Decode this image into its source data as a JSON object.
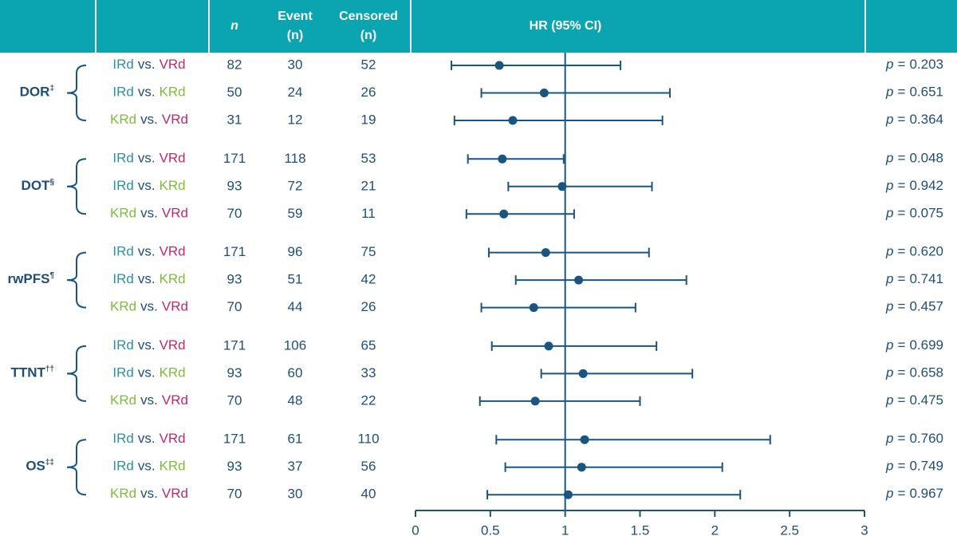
{
  "chart_data": {
    "type": "forest",
    "headers": {
      "n": "n",
      "event": [
        "Event",
        "(n)"
      ],
      "censored": [
        "Censored",
        "(n)"
      ],
      "hr": "HR (95% CI)"
    },
    "separator": "vs.",
    "p_symbol": "p",
    "p_equals": "=",
    "arm_colors": {
      "IRd": "#2b8fae",
      "VRd": "#c1286f",
      "KRd": "#7cbf3d"
    },
    "color": "#1a5480",
    "header_color": "#0ba5b1",
    "xlim": [
      0,
      3
    ],
    "xticks": [
      0,
      0.5,
      1,
      1.5,
      2,
      2.5,
      3
    ],
    "reference": 1,
    "groups": [
      {
        "label": "DOR",
        "sup": "‡",
        "rows": [
          {
            "arms": [
              "IRd",
              "VRd"
            ],
            "n": 82,
            "event": 30,
            "censored": 52,
            "hr": 0.56,
            "ci_low": 0.24,
            "ci_high": 1.37,
            "p": "0.203"
          },
          {
            "arms": [
              "IRd",
              "KRd"
            ],
            "n": 50,
            "event": 24,
            "censored": 26,
            "hr": 0.86,
            "ci_low": 0.44,
            "ci_high": 1.7,
            "p": "0.651"
          },
          {
            "arms": [
              "KRd",
              "VRd"
            ],
            "n": 31,
            "event": 12,
            "censored": 19,
            "hr": 0.65,
            "ci_low": 0.26,
            "ci_high": 1.65,
            "p": "0.364"
          }
        ]
      },
      {
        "label": "DOT",
        "sup": "§",
        "rows": [
          {
            "arms": [
              "IRd",
              "VRd"
            ],
            "n": 171,
            "event": 118,
            "censored": 53,
            "hr": 0.58,
            "ci_low": 0.35,
            "ci_high": 0.99,
            "p": "0.048"
          },
          {
            "arms": [
              "IRd",
              "KRd"
            ],
            "n": 93,
            "event": 72,
            "censored": 21,
            "hr": 0.98,
            "ci_low": 0.62,
            "ci_high": 1.58,
            "p": "0.942"
          },
          {
            "arms": [
              "KRd",
              "VRd"
            ],
            "n": 70,
            "event": 59,
            "censored": 11,
            "hr": 0.59,
            "ci_low": 0.34,
            "ci_high": 1.06,
            "p": "0.075"
          }
        ]
      },
      {
        "label": "rwPFS",
        "sup": "¶",
        "rows": [
          {
            "arms": [
              "IRd",
              "VRd"
            ],
            "n": 171,
            "event": 96,
            "censored": 75,
            "hr": 0.87,
            "ci_low": 0.49,
            "ci_high": 1.56,
            "p": "0.620"
          },
          {
            "arms": [
              "IRd",
              "KRd"
            ],
            "n": 93,
            "event": 51,
            "censored": 42,
            "hr": 1.09,
            "ci_low": 0.67,
            "ci_high": 1.81,
            "p": "0.741"
          },
          {
            "arms": [
              "KRd",
              "VRd"
            ],
            "n": 70,
            "event": 44,
            "censored": 26,
            "hr": 0.79,
            "ci_low": 0.44,
            "ci_high": 1.47,
            "p": "0.457"
          }
        ]
      },
      {
        "label": "TTNT",
        "sup": "††",
        "rows": [
          {
            "arms": [
              "IRd",
              "VRd"
            ],
            "n": 171,
            "event": 106,
            "censored": 65,
            "hr": 0.89,
            "ci_low": 0.51,
            "ci_high": 1.61,
            "p": "0.699"
          },
          {
            "arms": [
              "IRd",
              "KRd"
            ],
            "n": 93,
            "event": 60,
            "censored": 33,
            "hr": 1.12,
            "ci_low": 0.84,
            "ci_high": 1.85,
            "p": "0.658"
          },
          {
            "arms": [
              "KRd",
              "VRd"
            ],
            "n": 70,
            "event": 48,
            "censored": 22,
            "hr": 0.8,
            "ci_low": 0.43,
            "ci_high": 1.5,
            "p": "0.475"
          }
        ]
      },
      {
        "label": "OS",
        "sup": "‡‡",
        "rows": [
          {
            "arms": [
              "IRd",
              "VRd"
            ],
            "n": 171,
            "event": 61,
            "censored": 110,
            "hr": 1.13,
            "ci_low": 0.54,
            "ci_high": 2.37,
            "p": "0.760"
          },
          {
            "arms": [
              "IRd",
              "KRd"
            ],
            "n": 93,
            "event": 37,
            "censored": 56,
            "hr": 1.11,
            "ci_low": 0.6,
            "ci_high": 2.05,
            "p": "0.749"
          },
          {
            "arms": [
              "KRd",
              "VRd"
            ],
            "n": 70,
            "event": 30,
            "censored": 40,
            "hr": 1.02,
            "ci_low": 0.48,
            "ci_high": 2.17,
            "p": "0.967"
          }
        ]
      }
    ]
  }
}
